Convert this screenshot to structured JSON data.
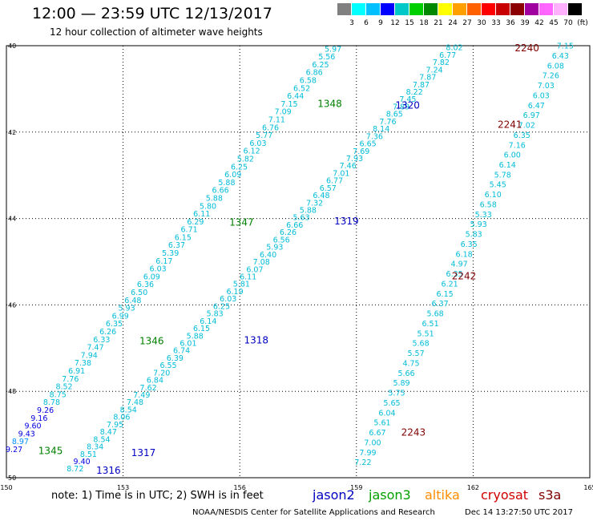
{
  "title": "12:00 — 23:59 UTC 12/13/2017",
  "subtitle": "12 hour collection of altimeter wave heights",
  "legend": {
    "colors": [
      "#808080",
      "#00ffff",
      "#00c0ff",
      "#0000ff",
      "#00c8c8",
      "#00d000",
      "#008800",
      "#ffff00",
      "#ffa000",
      "#ff6000",
      "#ff0000",
      "#c80000",
      "#8b0000",
      "#a000a0",
      "#ff66ff",
      "#ffb0ff",
      "#000000"
    ],
    "labels": [
      "3",
      "6",
      "9",
      "12",
      "15",
      "18",
      "21",
      "24",
      "27",
      "30",
      "33",
      "36",
      "39",
      "42",
      "45",
      "70",
      "(ft)"
    ]
  },
  "axes": {
    "lon_ticks": [
      "150",
      "153",
      "156",
      "159",
      "162",
      "165"
    ],
    "lat_ticks": [
      "40",
      "42",
      "44",
      "46",
      "48",
      "50"
    ]
  },
  "tracks": [
    {
      "id": "1345",
      "sat": "jason3",
      "color": "#008000",
      "label_x": 150.82,
      "label_y": 49.36,
      "lon_start": 149.98,
      "lon_end": 158.18,
      "lat_start": 49.35,
      "lat_end": 40.08,
      "values": [
        "9.27",
        "8.97",
        "9.43",
        "9.60",
        "9.16",
        "9.26",
        "8.78",
        "8.75",
        "8.52",
        "7.76",
        "6.91",
        "7.38",
        "7.94",
        "7.47",
        "6.33",
        "6.26",
        "6.35",
        "6.99",
        "5.93",
        "6.48",
        "6.50",
        "6.36",
        "6.09",
        "6.03",
        "6.17",
        "5.39",
        "6.37",
        "6.15",
        "6.71",
        "6.29",
        "6.11",
        "5.80",
        "5.88",
        "6.66",
        "5.88",
        "6.09",
        "6.25",
        "5.82",
        "6.12",
        "6.03",
        "5.77",
        "6.76",
        "7.11",
        "7.09",
        "7.15",
        "6.44",
        "6.52",
        "6.58",
        "6.86",
        "6.25",
        "5.56",
        "5.97"
      ]
    },
    {
      "id": "1317",
      "sat": "jason2",
      "color": "#0000c0",
      "label_x": 153.21,
      "label_y": 49.41,
      "lon_start": 151.55,
      "lon_end": 161.3,
      "lat_start": 49.8,
      "lat_end": 40.05,
      "values": [
        "8.72",
        "9.40",
        "8.51",
        "8.34",
        "8.54",
        "8.47",
        "7.95",
        "8.06",
        "8.54",
        "7.48",
        "7.49",
        "7.62",
        "6.84",
        "7.20",
        "6.55",
        "6.39",
        "6.74",
        "6.01",
        "5.88",
        "6.15",
        "6.14",
        "5.83",
        "6.25",
        "6.03",
        "6.19",
        "5.81",
        "6.11",
        "6.07",
        "7.08",
        "6.40",
        "5.93",
        "6.56",
        "6.26",
        "6.66",
        "5.63",
        "5.88",
        "7.32",
        "6.48",
        "6.57",
        "6.77",
        "7.01",
        "7.46",
        "7.93",
        "7.69",
        "6.65",
        "7.36",
        "8.14",
        "7.76",
        "8.65",
        "7.89",
        "7.45",
        "8.22",
        "7.87",
        "7.87",
        "7.24",
        "7.82",
        "6.77",
        "8.02"
      ]
    },
    {
      "id": "2243",
      "sat": "s3a",
      "color": "#800000",
      "label_x": 160.15,
      "label_y": 48.93,
      "lon_start": 158.95,
      "lon_end": 164.15,
      "lat_start": 49.65,
      "lat_end": 40.01,
      "values": [
        "7.22",
        "7.99",
        "7.00",
        "6.67",
        "5.61",
        "6.04",
        "5.65",
        "5.75",
        "5.89",
        "5.66",
        "4.75",
        "5.57",
        "5.68",
        "5.51",
        "6.51",
        "5.68",
        "6.37",
        "6.15",
        "6.21",
        "6.35",
        "4.97",
        "6.18",
        "6.35",
        "5.83",
        "5.93",
        "5.33",
        "6.58",
        "6.10",
        "5.45",
        "5.78",
        "6.14",
        "6.00",
        "7.16",
        "6.35",
        "7.02",
        "6.97",
        "6.47",
        "6.03",
        "7.03",
        "7.26",
        "6.08",
        "6.43",
        "7.15"
      ]
    }
  ],
  "orbit_labels": [
    {
      "text": "1316",
      "color": "#0000c0",
      "lon": 152.31,
      "lat": 49.81
    },
    {
      "text": "1317",
      "color": "#0000c0",
      "lon": 153.21,
      "lat": 49.41
    },
    {
      "text": "1318",
      "color": "#0000c0",
      "lon": 156.11,
      "lat": 46.8
    },
    {
      "text": "1319",
      "color": "#0000c0",
      "lon": 158.43,
      "lat": 44.04
    },
    {
      "text": "1320",
      "color": "#0000c0",
      "lon": 160.0,
      "lat": 41.36
    },
    {
      "text": "1345",
      "color": "#008000",
      "lon": 150.82,
      "lat": 49.36
    },
    {
      "text": "1346",
      "color": "#008000",
      "lon": 153.42,
      "lat": 46.82
    },
    {
      "text": "1347",
      "color": "#008000",
      "lon": 155.73,
      "lat": 44.07
    },
    {
      "text": "1348",
      "color": "#008000",
      "lon": 158.0,
      "lat": 41.33
    },
    {
      "text": "2240",
      "color": "#800000",
      "lon": 163.07,
      "lat": 40.04
    },
    {
      "text": "2241",
      "color": "#800000",
      "lon": 162.63,
      "lat": 41.81
    },
    {
      "text": "2242",
      "color": "#800000",
      "lon": 161.45,
      "lat": 45.32
    },
    {
      "text": "2243",
      "color": "#800000",
      "lon": 160.15,
      "lat": 48.93
    }
  ],
  "footer": {
    "note": "note: 1) Time is in UTC; 2) SWH is in feet",
    "sats": [
      {
        "name": "jason2",
        "color": "#0000c0"
      },
      {
        "name": "jason3",
        "color": "#00a000"
      },
      {
        "name": "altika",
        "color": "#ff8c00"
      },
      {
        "name": "cryosat",
        "color": "#d00000"
      },
      {
        "name": "s3a",
        "color": "#800000"
      }
    ],
    "credit": "NOAA/NESDIS Center for Satellite Applications and Research",
    "timestamp": "Dec 14 13:27:50 UTC 2017"
  }
}
